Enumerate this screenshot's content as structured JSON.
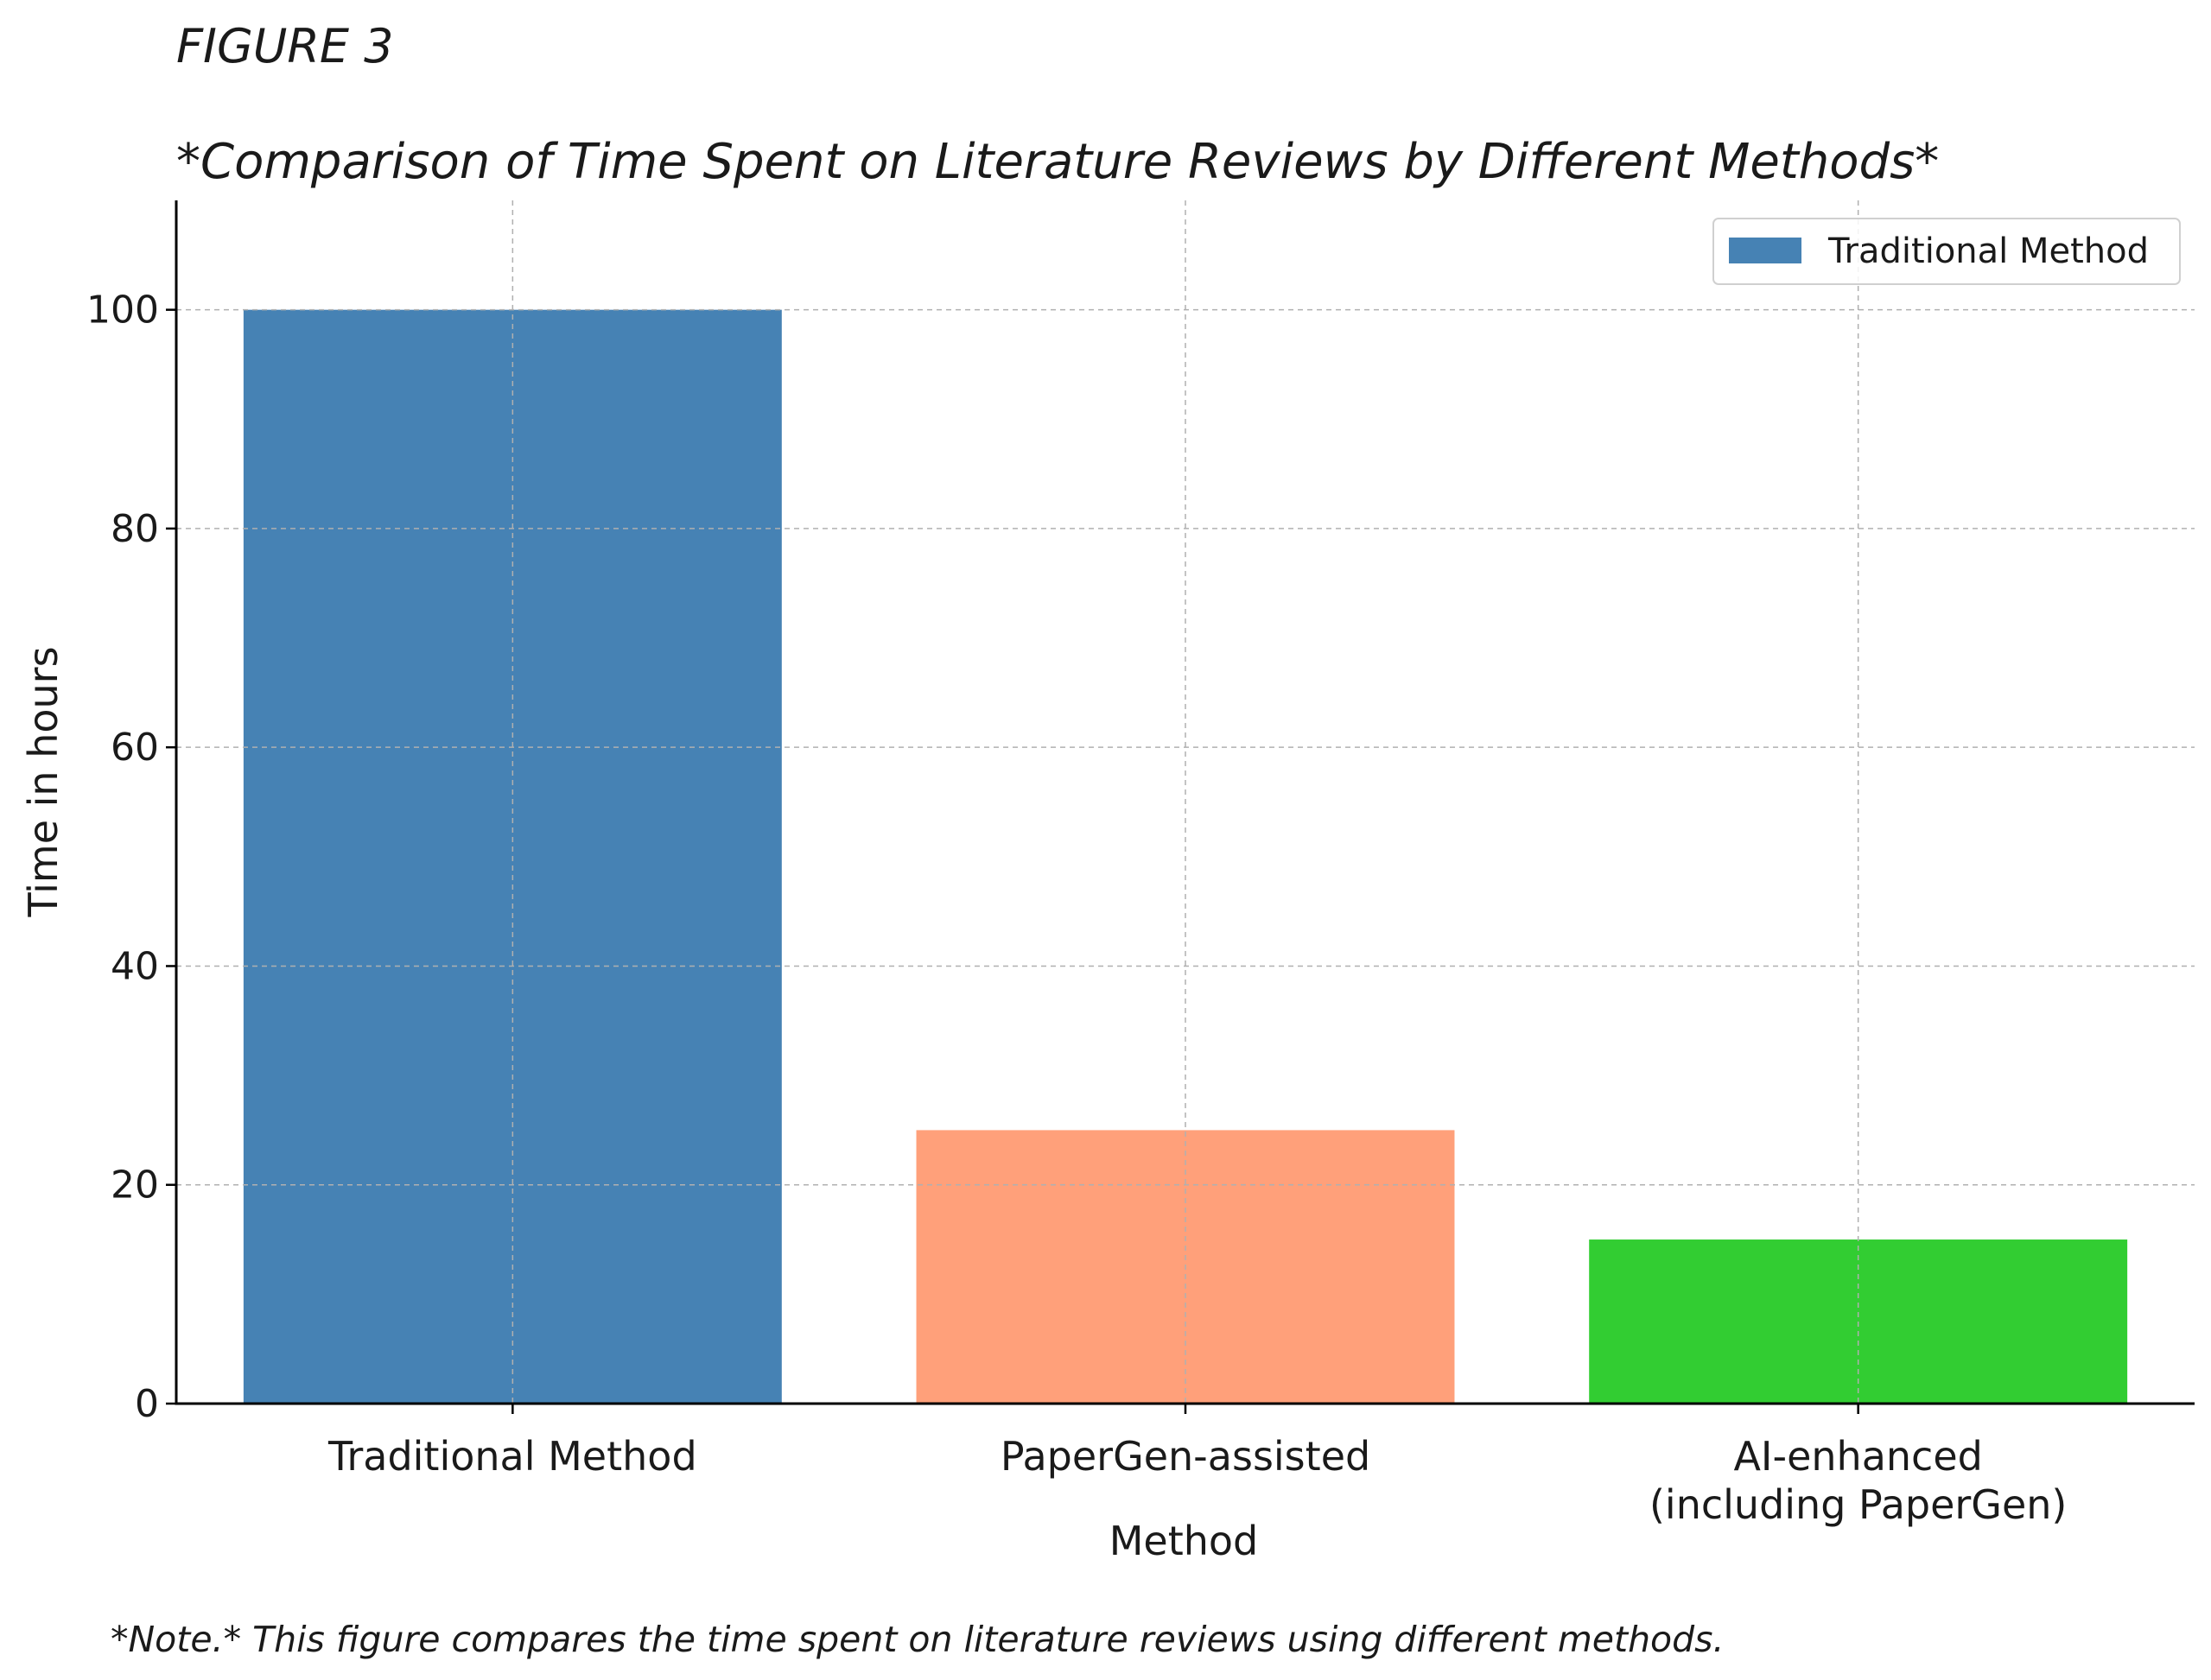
{
  "figure_label": "FIGURE 3",
  "note": "*Note.* This figure compares the time spent on literature reviews using different methods.",
  "chart_data": {
    "type": "bar",
    "title": "*Comparison of Time Spent on Literature Reviews by Different Methods*",
    "xlabel": "Method",
    "ylabel": "Time in hours",
    "categories": [
      [
        "Traditional Method"
      ],
      [
        "PaperGen-assisted"
      ],
      [
        "AI-enhanced",
        "(including PaperGen)"
      ]
    ],
    "values": [
      100,
      25,
      15
    ],
    "colors": [
      "#4682b4",
      "#ffa07a",
      "#32cd32"
    ],
    "ylim": [
      0,
      110
    ],
    "yticks": [
      0,
      20,
      40,
      60,
      80,
      100
    ],
    "grid": true,
    "legend": {
      "placement": "top-right",
      "entries": [
        {
          "label": "Traditional Method",
          "color": "#4682b4"
        }
      ]
    }
  }
}
